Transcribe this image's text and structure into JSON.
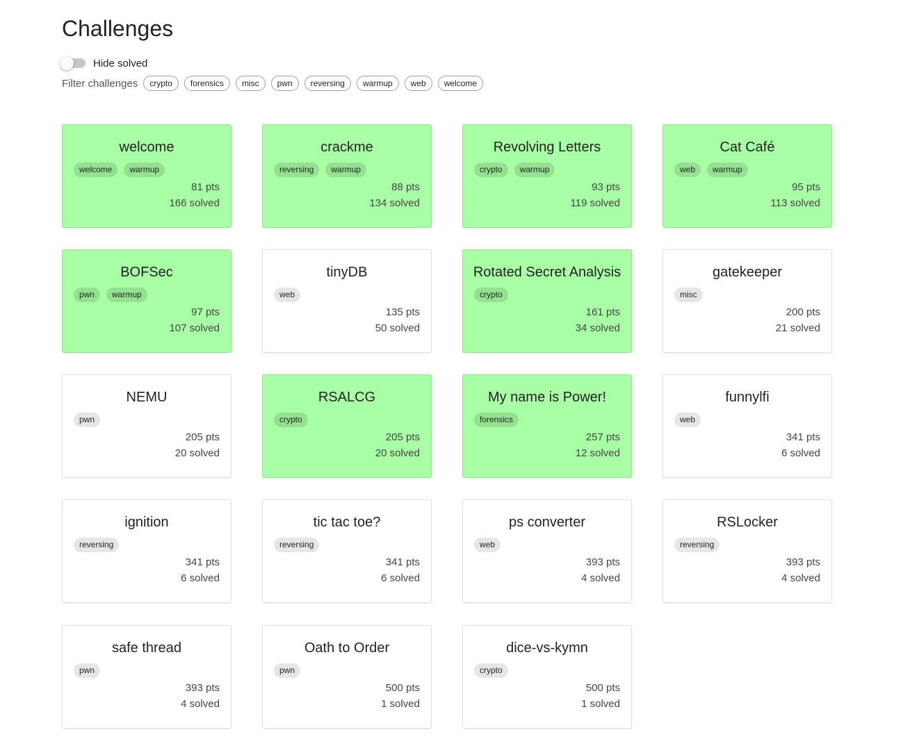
{
  "page": {
    "title": "Challenges"
  },
  "hide_solved": {
    "label": "Hide solved",
    "enabled": false
  },
  "filter": {
    "label": "Filter challenges",
    "categories": [
      "crypto",
      "forensics",
      "misc",
      "pwn",
      "reversing",
      "warmup",
      "web",
      "welcome"
    ]
  },
  "colors": {
    "solved_bg": "#a8ffa5",
    "unsolved_bg": "#ffffff"
  },
  "challenges": [
    {
      "name": "welcome",
      "tags": [
        "welcome",
        "warmup"
      ],
      "points": "81 pts",
      "solves": "166 solved",
      "solved": true
    },
    {
      "name": "crackme",
      "tags": [
        "reversing",
        "warmup"
      ],
      "points": "88 pts",
      "solves": "134 solved",
      "solved": true
    },
    {
      "name": "Revolving Letters",
      "tags": [
        "crypto",
        "warmup"
      ],
      "points": "93 pts",
      "solves": "119 solved",
      "solved": true
    },
    {
      "name": "Cat Café",
      "tags": [
        "web",
        "warmup"
      ],
      "points": "95 pts",
      "solves": "113 solved",
      "solved": true
    },
    {
      "name": "BOFSec",
      "tags": [
        "pwn",
        "warmup"
      ],
      "points": "97 pts",
      "solves": "107 solved",
      "solved": true
    },
    {
      "name": "tinyDB",
      "tags": [
        "web"
      ],
      "points": "135 pts",
      "solves": "50 solved",
      "solved": false
    },
    {
      "name": "Rotated Secret Analysis",
      "tags": [
        "crypto"
      ],
      "points": "161 pts",
      "solves": "34 solved",
      "solved": true
    },
    {
      "name": "gatekeeper",
      "tags": [
        "misc"
      ],
      "points": "200 pts",
      "solves": "21 solved",
      "solved": false
    },
    {
      "name": "NEMU",
      "tags": [
        "pwn"
      ],
      "points": "205 pts",
      "solves": "20 solved",
      "solved": false
    },
    {
      "name": "RSALCG",
      "tags": [
        "crypto"
      ],
      "points": "205 pts",
      "solves": "20 solved",
      "solved": true
    },
    {
      "name": "My name is Power!",
      "tags": [
        "forensics"
      ],
      "points": "257 pts",
      "solves": "12 solved",
      "solved": true
    },
    {
      "name": "funnylfi",
      "tags": [
        "web"
      ],
      "points": "341 pts",
      "solves": "6 solved",
      "solved": false
    },
    {
      "name": "ignition",
      "tags": [
        "reversing"
      ],
      "points": "341 pts",
      "solves": "6 solved",
      "solved": false
    },
    {
      "name": "tic tac toe?",
      "tags": [
        "reversing"
      ],
      "points": "341 pts",
      "solves": "6 solved",
      "solved": false
    },
    {
      "name": "ps converter",
      "tags": [
        "web"
      ],
      "points": "393 pts",
      "solves": "4 solved",
      "solved": false
    },
    {
      "name": "RSLocker",
      "tags": [
        "reversing"
      ],
      "points": "393 pts",
      "solves": "4 solved",
      "solved": false
    },
    {
      "name": "safe thread",
      "tags": [
        "pwn"
      ],
      "points": "393 pts",
      "solves": "4 solved",
      "solved": false
    },
    {
      "name": "Oath to Order",
      "tags": [
        "pwn"
      ],
      "points": "500 pts",
      "solves": "1 solved",
      "solved": false
    },
    {
      "name": "dice-vs-kymn",
      "tags": [
        "crypto"
      ],
      "points": "500 pts",
      "solves": "1 solved",
      "solved": false
    }
  ]
}
